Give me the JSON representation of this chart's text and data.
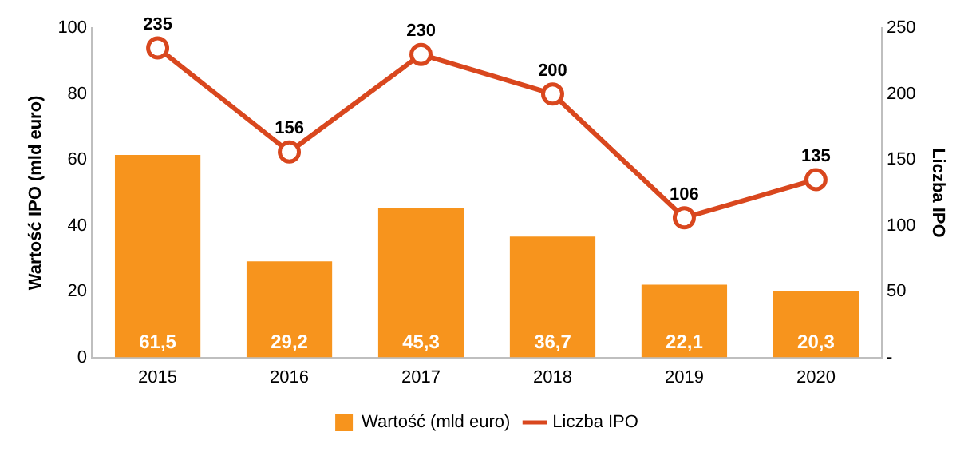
{
  "chart_data": {
    "type": "bar",
    "categories": [
      "2015",
      "2016",
      "2017",
      "2018",
      "2019",
      "2020"
    ],
    "series": [
      {
        "name": "Wartość (mld euro)",
        "color": "#f7941d",
        "values": [
          61.5,
          29.2,
          45.3,
          36.7,
          22.1,
          20.3
        ],
        "value_labels": [
          "61,5",
          "29,2",
          "45,3",
          "36,7",
          "22,1",
          "20,3"
        ]
      },
      {
        "name": "Liczba IPO",
        "type": "line",
        "axis": "y2",
        "color": "#d9471e",
        "marker": "circle",
        "values": [
          235,
          156,
          230,
          200,
          106,
          135
        ],
        "value_labels": [
          "235",
          "156",
          "230",
          "200",
          "106",
          "135"
        ]
      }
    ],
    "ylabel": "Wartość IPO (mld euro)",
    "y2label": "Liczba IPO",
    "ylim": [
      0,
      100
    ],
    "yticks": [
      0,
      20,
      40,
      60,
      80,
      100
    ],
    "y2lim": [
      0,
      250
    ],
    "y2ticks": [
      {
        "value": 0,
        "label": "-"
      },
      50,
      100,
      150,
      200,
      250
    ],
    "grid": false,
    "legend": "bottom"
  }
}
